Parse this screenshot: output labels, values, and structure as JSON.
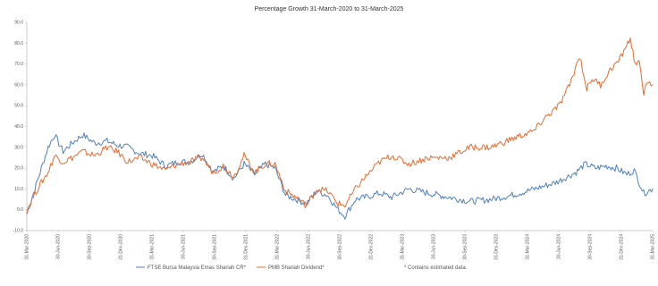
{
  "chart_data": {
    "type": "line",
    "title": "Percentage Growth 31-March-2020 to 31-March-2025",
    "xlabel": "",
    "ylabel": "",
    "ylim": [
      -10,
      90
    ],
    "y_ticks": [
      "-10.0",
      "0.0",
      "10.0",
      "20.0",
      "30.0",
      "40.0",
      "50.0",
      "60.0",
      "70.0",
      "80.0",
      "90.0"
    ],
    "x_range": [
      "2020-03-31",
      "2025-03-31"
    ],
    "x_ticks": [
      "31-Mar-2020",
      "30-Jun-2020",
      "30-Sep-2020",
      "31-Dec-2020",
      "31-Mar-2021",
      "30-Jun-2021",
      "30-Sep-2021",
      "31-Dec-2021",
      "31-Mar-2022",
      "30-Jun-2022",
      "30-Sep-2022",
      "31-Dec-2022",
      "31-Mar-2023",
      "30-Jun-2023",
      "30-Sep-2023",
      "31-Dec-2023",
      "31-Mar-2024",
      "30-Jun-2024",
      "30-Sep-2024",
      "31-Dec-2024",
      "31-Mar-2025"
    ],
    "grid": false,
    "legend_position": "bottom",
    "footnote": "* Contains estimated data.",
    "series": [
      {
        "name": "FTSE Bursa Malaysia Emas Shariah CR*",
        "color": "#4f81bd",
        "points": [
          [
            "2020-03-31",
            -2
          ],
          [
            "2020-05-01",
            14
          ],
          [
            "2020-06-01",
            30
          ],
          [
            "2020-06-20",
            36
          ],
          [
            "2020-07-15",
            28
          ],
          [
            "2020-08-10",
            32
          ],
          [
            "2020-09-10",
            36
          ],
          [
            "2020-10-15",
            32
          ],
          [
            "2020-11-20",
            33
          ],
          [
            "2020-12-20",
            31
          ],
          [
            "2021-01-20",
            30
          ],
          [
            "2021-02-25",
            27
          ],
          [
            "2021-04-01",
            26
          ],
          [
            "2021-05-10",
            21
          ],
          [
            "2021-06-15",
            23
          ],
          [
            "2021-07-20",
            23
          ],
          [
            "2021-08-25",
            27
          ],
          [
            "2021-09-25",
            18
          ],
          [
            "2021-10-25",
            21
          ],
          [
            "2021-11-25",
            15
          ],
          [
            "2021-12-25",
            22
          ],
          [
            "2022-01-25",
            17
          ],
          [
            "2022-02-25",
            22
          ],
          [
            "2022-03-25",
            20
          ],
          [
            "2022-04-25",
            7
          ],
          [
            "2022-05-25",
            5
          ],
          [
            "2022-06-25",
            3
          ],
          [
            "2022-07-25",
            9
          ],
          [
            "2022-08-25",
            7
          ],
          [
            "2022-09-25",
            0
          ],
          [
            "2022-10-15",
            -3
          ],
          [
            "2022-11-15",
            5
          ],
          [
            "2022-12-15",
            6
          ],
          [
            "2023-01-25",
            8
          ],
          [
            "2023-03-01",
            6
          ],
          [
            "2023-04-20",
            10
          ],
          [
            "2023-06-15",
            8
          ],
          [
            "2023-08-15",
            6
          ],
          [
            "2023-10-15",
            4
          ],
          [
            "2023-12-15",
            5
          ],
          [
            "2024-02-15",
            7
          ],
          [
            "2024-04-20",
            10
          ],
          [
            "2024-06-20",
            13
          ],
          [
            "2024-08-20",
            18
          ],
          [
            "2024-09-15",
            22
          ],
          [
            "2024-10-15",
            20
          ],
          [
            "2024-11-15",
            21
          ],
          [
            "2024-12-15",
            20
          ],
          [
            "2025-01-15",
            17
          ],
          [
            "2025-02-05",
            19
          ],
          [
            "2025-03-05",
            8
          ],
          [
            "2025-03-31",
            10
          ]
        ]
      },
      {
        "name": "PMB Shariah Dividend*",
        "color": "#e46c2f",
        "points": [
          [
            "2020-03-31",
            0
          ],
          [
            "2020-05-01",
            10
          ],
          [
            "2020-06-01",
            18
          ],
          [
            "2020-06-20",
            26
          ],
          [
            "2020-07-15",
            23
          ],
          [
            "2020-08-10",
            25
          ],
          [
            "2020-09-10",
            28
          ],
          [
            "2020-10-15",
            26
          ],
          [
            "2020-11-20",
            30
          ],
          [
            "2020-12-20",
            28
          ],
          [
            "2021-01-20",
            23
          ],
          [
            "2021-02-25",
            25
          ],
          [
            "2021-04-01",
            22
          ],
          [
            "2021-05-10",
            19
          ],
          [
            "2021-06-15",
            22
          ],
          [
            "2021-07-20",
            23
          ],
          [
            "2021-08-25",
            25
          ],
          [
            "2021-09-25",
            18
          ],
          [
            "2021-10-25",
            21
          ],
          [
            "2021-11-25",
            16
          ],
          [
            "2021-12-25",
            26
          ],
          [
            "2022-01-25",
            18
          ],
          [
            "2022-02-25",
            22
          ],
          [
            "2022-03-25",
            22
          ],
          [
            "2022-04-25",
            9
          ],
          [
            "2022-05-25",
            6
          ],
          [
            "2022-06-25",
            2
          ],
          [
            "2022-07-25",
            10
          ],
          [
            "2022-08-25",
            9
          ],
          [
            "2022-09-25",
            3
          ],
          [
            "2022-10-15",
            2
          ],
          [
            "2022-11-15",
            10
          ],
          [
            "2022-12-15",
            16
          ],
          [
            "2023-01-25",
            23
          ],
          [
            "2023-03-01",
            26
          ],
          [
            "2023-04-20",
            22
          ],
          [
            "2023-06-15",
            25
          ],
          [
            "2023-08-15",
            25
          ],
          [
            "2023-10-15",
            30
          ],
          [
            "2023-12-15",
            30
          ],
          [
            "2024-02-15",
            34
          ],
          [
            "2024-04-20",
            38
          ],
          [
            "2024-05-20",
            44
          ],
          [
            "2024-07-01",
            50
          ],
          [
            "2024-08-01",
            60
          ],
          [
            "2024-08-30",
            74
          ],
          [
            "2024-09-20",
            58
          ],
          [
            "2024-10-05",
            63
          ],
          [
            "2024-10-30",
            60
          ],
          [
            "2024-12-01",
            68
          ],
          [
            "2024-12-25",
            72
          ],
          [
            "2025-01-10",
            78
          ],
          [
            "2025-01-25",
            82
          ],
          [
            "2025-02-05",
            72
          ],
          [
            "2025-02-20",
            70
          ],
          [
            "2025-03-05",
            56
          ],
          [
            "2025-03-18",
            62
          ],
          [
            "2025-03-31",
            60
          ]
        ]
      }
    ]
  }
}
